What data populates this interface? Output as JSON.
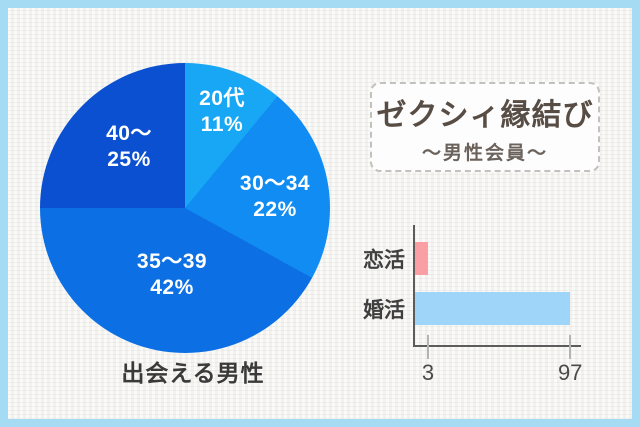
{
  "canvas": {
    "border_color": "#a6dcf3",
    "paper_color": "#f5f4f1"
  },
  "title_box": {
    "logo": "ゼクシィ縁結び",
    "subtitle": "〜男性会員〜",
    "logo_color": "#584d44"
  },
  "chart_data": [
    {
      "type": "pie",
      "title": "出会える男性",
      "labels": [
        "20代",
        "30〜34",
        "35〜39",
        "40〜"
      ],
      "values": [
        11,
        22,
        42,
        25
      ],
      "value_labels": [
        "11%",
        "22%",
        "42%",
        "25%"
      ],
      "unit": "%",
      "colors": [
        "#17a7f4",
        "#118cf3",
        "#0c70e4",
        "#0a50d0"
      ],
      "start_angle_deg": 0,
      "direction": "clockwise",
      "label_color": "#ffffff"
    },
    {
      "type": "bar",
      "orientation": "horizontal",
      "categories": [
        "恋活",
        "婚活"
      ],
      "values": [
        3,
        97
      ],
      "tick_labels": [
        "3",
        "97"
      ],
      "colors": [
        "#fa9fa4",
        "#9ed5f8"
      ],
      "xlim": [
        0,
        100
      ],
      "axis_color": "#5c5c5c",
      "grid": false,
      "legend": false
    }
  ]
}
